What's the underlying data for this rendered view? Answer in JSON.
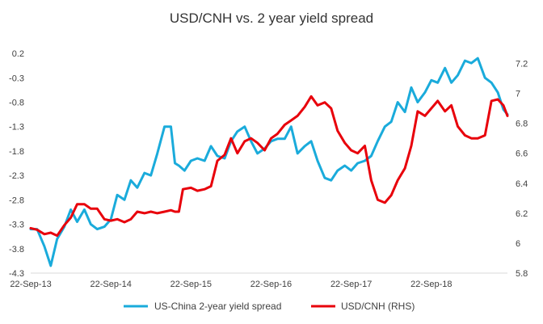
{
  "chart_data": {
    "type": "line",
    "title": "USD/CNH vs. 2 year yield spread",
    "x_tick_labels": [
      "22-Sep-13",
      "22-Sep-14",
      "22-Sep-15",
      "22-Sep-16",
      "22-Sep-17",
      "22-Sep-18"
    ],
    "x_range": [
      0,
      5.95
    ],
    "y_left": {
      "ticks": [
        0.2,
        -0.3,
        -0.8,
        -1.3,
        -1.8,
        -2.3,
        -2.8,
        -3.3,
        -3.8,
        -4.3
      ],
      "labels": [
        "0.2",
        "-0.3",
        "-0.8",
        "-1.3",
        "-1.8",
        "-2.3",
        "-2.8",
        "-3.3",
        "-3.8",
        "-4.3"
      ],
      "range": [
        -4.3,
        0.3
      ]
    },
    "y_right": {
      "ticks": [
        5.8,
        6.0,
        6.2,
        6.4,
        6.6,
        6.8,
        7.0,
        7.2
      ],
      "labels": [
        "5.8",
        "6",
        "6.2",
        "6.4",
        "6.6",
        "6.8",
        "7",
        "7.2"
      ],
      "range": [
        5.8,
        7.3
      ]
    },
    "series": [
      {
        "name": "US-China 2-year yield spread",
        "axis": "left",
        "color": "#1AABDB",
        "x": [
          0.0,
          0.08,
          0.17,
          0.25,
          0.33,
          0.42,
          0.5,
          0.58,
          0.67,
          0.75,
          0.83,
          0.92,
          1.0,
          1.08,
          1.17,
          1.25,
          1.33,
          1.42,
          1.5,
          1.58,
          1.67,
          1.75,
          1.8,
          1.85,
          1.92,
          2.0,
          2.08,
          2.17,
          2.25,
          2.33,
          2.42,
          2.5,
          2.58,
          2.67,
          2.75,
          2.83,
          2.92,
          3.0,
          3.08,
          3.17,
          3.25,
          3.33,
          3.42,
          3.5,
          3.58,
          3.67,
          3.75,
          3.83,
          3.92,
          4.0,
          4.08,
          4.17,
          4.25,
          4.33,
          4.42,
          4.5,
          4.58,
          4.67,
          4.75,
          4.83,
          4.92,
          5.0,
          5.08,
          5.17,
          5.25,
          5.33,
          5.42,
          5.5,
          5.58,
          5.67,
          5.75,
          5.83,
          5.9,
          5.95
        ],
        "y": [
          -3.4,
          -3.4,
          -3.75,
          -4.15,
          -3.6,
          -3.35,
          -3.0,
          -3.25,
          -3.0,
          -3.3,
          -3.4,
          -3.35,
          -3.2,
          -2.7,
          -2.8,
          -2.4,
          -2.55,
          -2.25,
          -2.3,
          -1.85,
          -1.3,
          -1.3,
          -2.05,
          -2.1,
          -2.2,
          -2.0,
          -1.95,
          -2.0,
          -1.7,
          -1.9,
          -1.95,
          -1.6,
          -1.4,
          -1.3,
          -1.6,
          -1.85,
          -1.75,
          -1.6,
          -1.55,
          -1.55,
          -1.3,
          -1.85,
          -1.7,
          -1.6,
          -2.0,
          -2.35,
          -2.4,
          -2.2,
          -2.1,
          -2.2,
          -2.05,
          -2.0,
          -1.9,
          -1.6,
          -1.3,
          -1.2,
          -0.8,
          -1.0,
          -0.5,
          -0.8,
          -0.6,
          -0.35,
          -0.4,
          -0.1,
          -0.4,
          -0.25,
          0.05,
          0.0,
          0.1,
          -0.3,
          -0.4,
          -0.6,
          -0.95,
          -1.05
        ]
      },
      {
        "name": "USD/CNH (RHS)",
        "axis": "right",
        "color": "#E8000B",
        "x": [
          0.0,
          0.08,
          0.17,
          0.25,
          0.33,
          0.42,
          0.5,
          0.58,
          0.67,
          0.75,
          0.83,
          0.92,
          1.0,
          1.08,
          1.17,
          1.25,
          1.33,
          1.42,
          1.5,
          1.58,
          1.67,
          1.75,
          1.8,
          1.85,
          1.9,
          2.0,
          2.08,
          2.17,
          2.25,
          2.33,
          2.42,
          2.5,
          2.58,
          2.67,
          2.75,
          2.83,
          2.92,
          3.0,
          3.08,
          3.17,
          3.25,
          3.33,
          3.42,
          3.5,
          3.58,
          3.67,
          3.75,
          3.83,
          3.92,
          4.0,
          4.08,
          4.17,
          4.25,
          4.33,
          4.42,
          4.5,
          4.58,
          4.67,
          4.75,
          4.83,
          4.92,
          5.0,
          5.08,
          5.17,
          5.25,
          5.33,
          5.42,
          5.5,
          5.58,
          5.67,
          5.75,
          5.83,
          5.9,
          5.95
        ],
        "y": [
          6.1,
          6.09,
          6.06,
          6.07,
          6.05,
          6.12,
          6.17,
          6.26,
          6.26,
          6.23,
          6.23,
          6.16,
          6.15,
          6.16,
          6.14,
          6.16,
          6.21,
          6.2,
          6.21,
          6.2,
          6.21,
          6.22,
          6.21,
          6.21,
          6.36,
          6.37,
          6.35,
          6.36,
          6.38,
          6.55,
          6.59,
          6.7,
          6.6,
          6.68,
          6.7,
          6.67,
          6.62,
          6.7,
          6.73,
          6.79,
          6.82,
          6.85,
          6.91,
          6.98,
          6.92,
          6.94,
          6.9,
          6.75,
          6.67,
          6.62,
          6.6,
          6.65,
          6.42,
          6.29,
          6.27,
          6.32,
          6.42,
          6.5,
          6.65,
          6.88,
          6.85,
          6.9,
          6.95,
          6.88,
          6.92,
          6.78,
          6.72,
          6.7,
          6.7,
          6.72,
          6.95,
          6.96,
          6.92,
          6.85
        ]
      }
    ],
    "legend_position": "bottom"
  }
}
